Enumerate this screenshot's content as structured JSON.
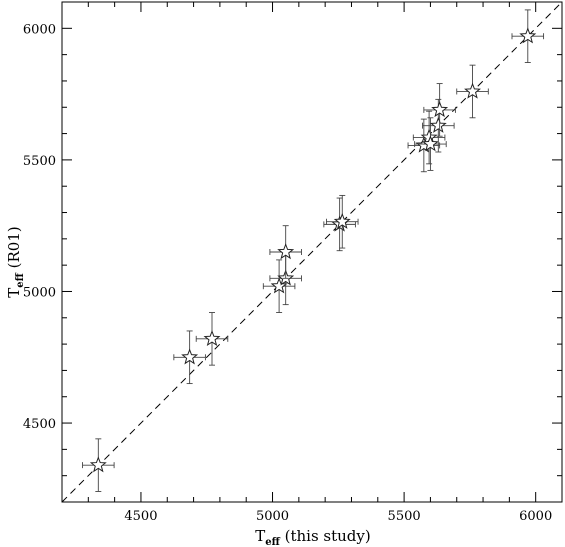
{
  "chart_data": {
    "type": "scatter",
    "xlabel": {
      "main": "T",
      "sub": "eff",
      "rest": " (this study)"
    },
    "ylabel": {
      "main": "T",
      "sub": "eff",
      "rest": " (R01)"
    },
    "xlim": [
      4200,
      6100
    ],
    "ylim": [
      4200,
      6100
    ],
    "xticks": [
      4500,
      5000,
      5500,
      6000
    ],
    "yticks": [
      4500,
      5000,
      5500,
      6000
    ],
    "xtick_labels": [
      "4500",
      "5000",
      "5500",
      "6000"
    ],
    "ytick_labels": [
      "4500",
      "5000",
      "5500",
      "6000"
    ],
    "reference_line": {
      "type": "one-to-one",
      "style": "dashed",
      "from": [
        4200,
        4200
      ],
      "to": [
        6100,
        6100
      ]
    },
    "marker": "star",
    "points": [
      {
        "x": 4338,
        "y": 4340,
        "xerr": 60,
        "yerr": 100
      },
      {
        "x": 4685,
        "y": 4750,
        "xerr": 60,
        "yerr": 100
      },
      {
        "x": 4770,
        "y": 4820,
        "xerr": 60,
        "yerr": 100
      },
      {
        "x": 5025,
        "y": 5020,
        "xerr": 60,
        "yerr": 100
      },
      {
        "x": 5050,
        "y": 5050,
        "xerr": 60,
        "yerr": 100
      },
      {
        "x": 5050,
        "y": 5150,
        "xerr": 60,
        "yerr": 100
      },
      {
        "x": 5255,
        "y": 5255,
        "xerr": 60,
        "yerr": 100
      },
      {
        "x": 5265,
        "y": 5265,
        "xerr": 60,
        "yerr": 100
      },
      {
        "x": 5575,
        "y": 5555,
        "xerr": 60,
        "yerr": 100
      },
      {
        "x": 5595,
        "y": 5585,
        "xerr": 60,
        "yerr": 100
      },
      {
        "x": 5600,
        "y": 5560,
        "xerr": 60,
        "yerr": 100
      },
      {
        "x": 5630,
        "y": 5630,
        "xerr": 60,
        "yerr": 100
      },
      {
        "x": 5635,
        "y": 5690,
        "xerr": 60,
        "yerr": 100
      },
      {
        "x": 5760,
        "y": 5760,
        "xerr": 60,
        "yerr": 100
      },
      {
        "x": 5970,
        "y": 5970,
        "xerr": 60,
        "yerr": 100
      }
    ],
    "grid": false,
    "minor_ticks": true
  }
}
